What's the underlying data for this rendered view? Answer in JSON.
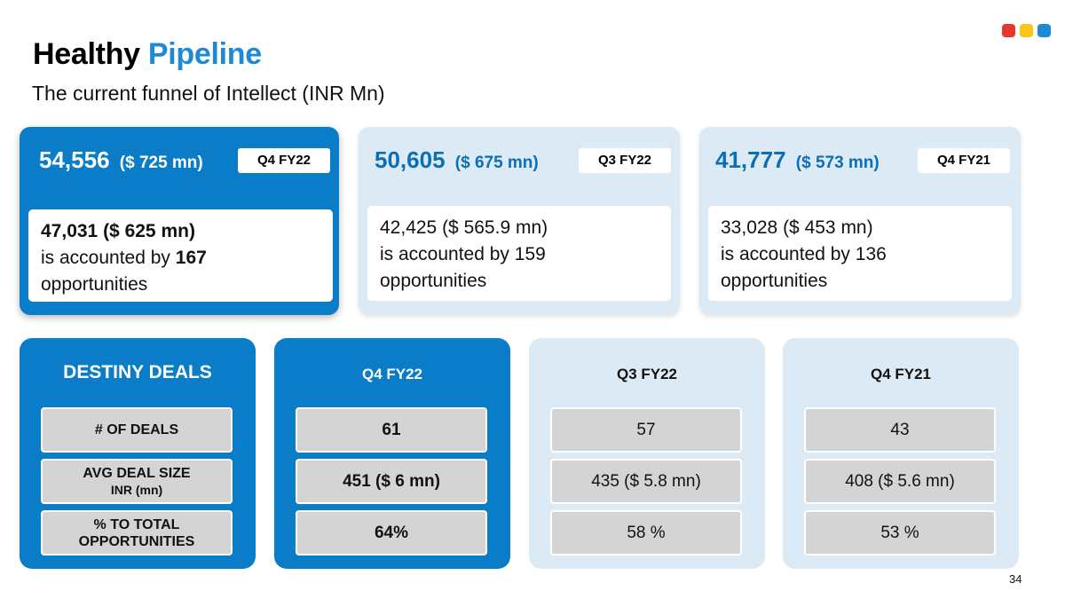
{
  "header": {
    "title_main": "Healthy",
    "title_accent": "Pipeline",
    "subtitle": "The current funnel of Intellect (INR Mn)"
  },
  "logo_colors": [
    "#e23a2e",
    "#f6c61b",
    "#1e8ad6"
  ],
  "funnel_cards": [
    {
      "amount": "54,556",
      "usd": "($ 725 mn)",
      "quarter": "Q4 FY22",
      "body_amount": "47,031 ($ 625 mn)",
      "body_prefix": "is accounted by",
      "body_count": "167",
      "body_suffix": "opportunities"
    },
    {
      "amount": "50,605",
      "usd": "($ 675 mn)",
      "quarter": "Q3 FY22",
      "body_amount": "42,425 ($ 565.9 mn)",
      "body_prefix": "is accounted by",
      "body_count": "159",
      "body_suffix": "opportunities"
    },
    {
      "amount": "41,777",
      "usd": "($ 573 mn)",
      "quarter": "Q4 FY21",
      "body_amount": "33,028 ($ 453 mn)",
      "body_prefix": "is accounted by",
      "body_count": "136",
      "body_suffix": "opportunities"
    }
  ],
  "destiny": {
    "title": "DESTINY DEALS",
    "labels": [
      {
        "line1": "# OF DEALS",
        "line2": ""
      },
      {
        "line1": "AVG DEAL SIZE",
        "line2": "INR (mn)"
      },
      {
        "line1": "% TO TOTAL",
        "line2": "OPPORTUNITIES"
      }
    ]
  },
  "periods": [
    {
      "title": "Q4 FY22",
      "values": [
        "61",
        "451 ($ 6 mn)",
        "64%"
      ]
    },
    {
      "title": "Q3 FY22",
      "values": [
        "57",
        "435 ($ 5.8 mn)",
        "58 %"
      ]
    },
    {
      "title": "Q4 FY21",
      "values": [
        "43",
        "408 ($ 5.6 mn)",
        "53 %"
      ]
    }
  ],
  "page_number": "34"
}
